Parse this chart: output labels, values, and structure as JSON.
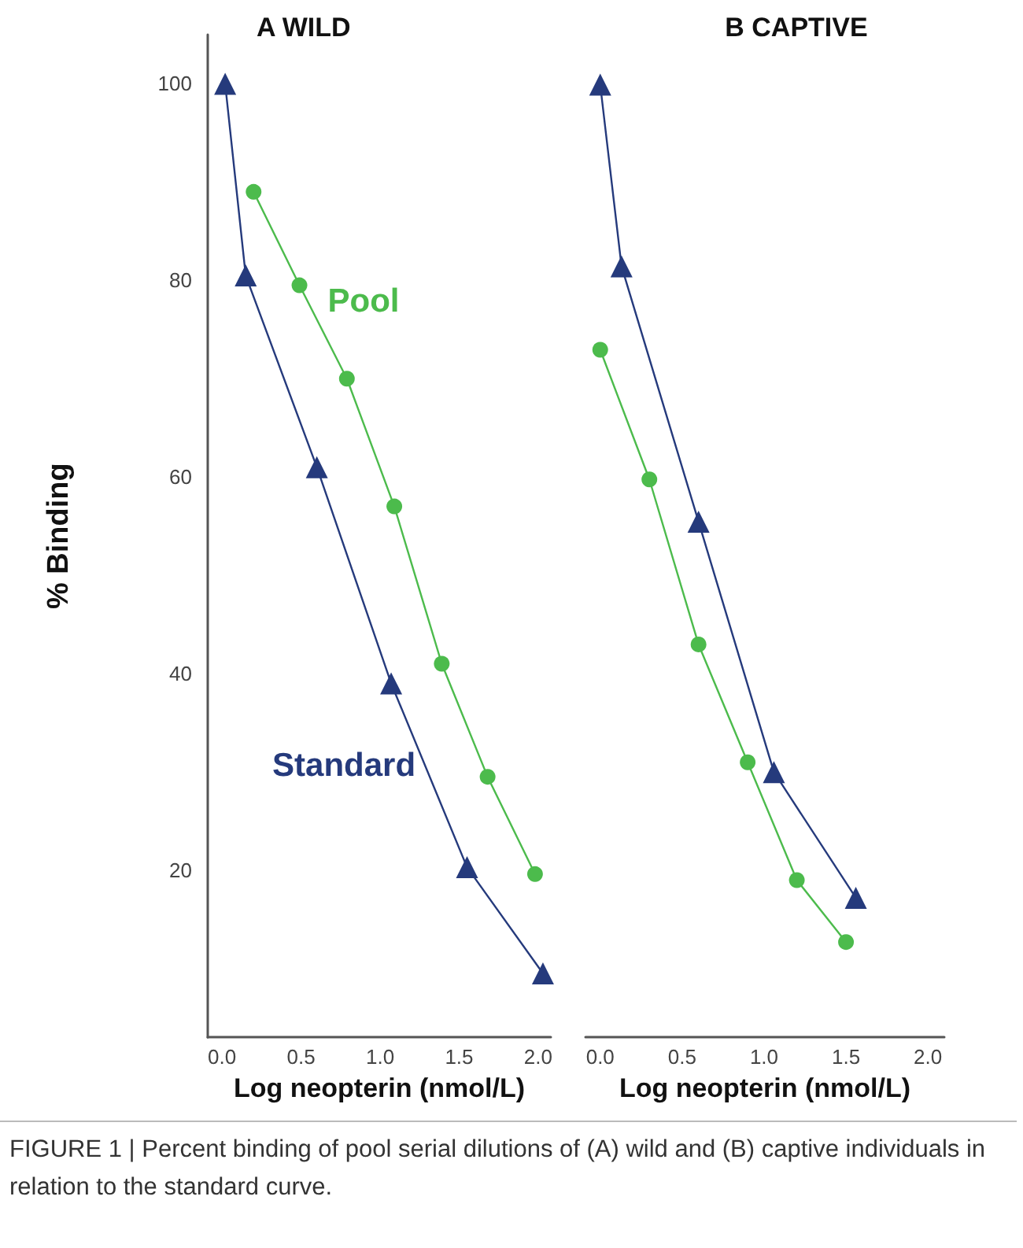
{
  "chart_data": [
    {
      "type": "line",
      "title": "A WILD",
      "xlabel": "Log neopterin (nmol/L)",
      "ylabel": "% Binding",
      "xlim": [
        -0.09,
        2.08
      ],
      "xticks": [
        {
          "value": 0,
          "label": "0.0"
        },
        {
          "value": 0.5,
          "label": "0.5"
        },
        {
          "value": 1,
          "label": "1.0"
        },
        {
          "value": 1.5,
          "label": "1.5"
        },
        {
          "value": 2,
          "label": "2.0"
        }
      ],
      "ylim": [
        3,
        105
      ],
      "yticks": [
        20,
        40,
        60,
        80,
        100
      ],
      "grid": false,
      "legend": false,
      "series": [
        {
          "name": "Standard",
          "color": "#253a7c",
          "marker": "triangle",
          "x": [
            0.02,
            0.15,
            0.6,
            1.07,
            1.55,
            2.03
          ],
          "values": [
            100,
            80.5,
            61,
            39,
            20.3,
            9.5
          ]
        },
        {
          "name": "Pool",
          "color": "#4cbb4c",
          "marker": "circle",
          "x": [
            0.2,
            0.49,
            0.79,
            1.09,
            1.39,
            1.68,
            1.98
          ],
          "values": [
            89,
            79.5,
            70,
            57,
            41,
            29.5,
            19.6
          ]
        }
      ],
      "annotations": [
        "FIGURE 1 | Percent binding of pool serial dilutions of (A) wild and (B) captive individuals in relation to the standard curve."
      ]
    },
    {
      "type": "line",
      "title": "B CAPTIVE",
      "xlabel": "Log neopterin (nmol/L)",
      "xlim": [
        -0.09,
        2.1
      ],
      "xticks": [
        {
          "value": 0,
          "label": "0.0"
        },
        {
          "value": 0.5,
          "label": "0.5"
        },
        {
          "value": 1,
          "label": "1.0"
        },
        {
          "value": 1.5,
          "label": "1.5"
        },
        {
          "value": 2,
          "label": "2.0"
        }
      ],
      "ylim": [
        3,
        100
      ],
      "yticks": [
        20,
        40,
        60,
        80,
        100
      ],
      "tick_labels": "x",
      "grid": false,
      "legend": false,
      "series": [
        {
          "color": "#253a7c",
          "marker": "triangle",
          "x": [
            0.0,
            0.13,
            0.6,
            1.06,
            1.56
          ],
          "values": [
            100,
            81.5,
            55.5,
            30,
            17.2
          ]
        },
        {
          "color": "#4cbb4c",
          "marker": "circle",
          "x": [
            0.0,
            0.3,
            0.6,
            0.9,
            1.2,
            1.5
          ],
          "values": [
            73,
            59.8,
            43,
            31,
            19,
            12.7
          ]
        }
      ]
    }
  ]
}
